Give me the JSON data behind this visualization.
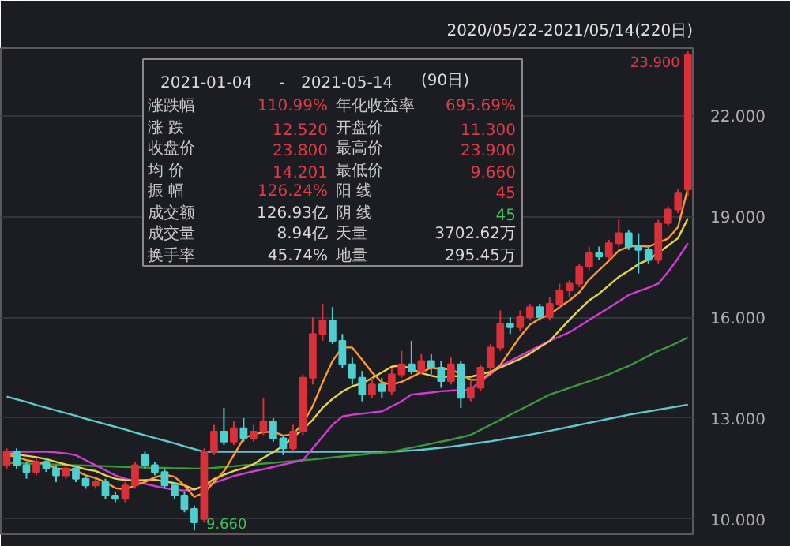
{
  "chart_data": {
    "type": "candlestick",
    "categories": [
      null,
      null,
      null,
      null,
      null,
      null,
      null,
      null,
      null,
      null,
      null,
      null,
      null,
      null,
      null,
      null,
      null,
      null,
      null,
      null,
      null,
      null,
      null,
      null,
      null,
      null,
      null,
      null,
      null,
      null,
      null,
      null,
      null,
      null,
      null,
      null,
      null,
      null,
      null,
      null,
      null,
      null,
      null,
      null,
      null,
      null,
      null,
      null,
      null,
      null,
      null,
      null,
      null,
      null,
      null,
      null,
      null,
      null,
      null,
      null,
      null,
      null,
      null,
      null,
      null,
      null,
      null,
      null,
      null,
      null
    ],
    "ohlc": [
      [
        11.6,
        12.1,
        11.5,
        12.0
      ],
      [
        12.0,
        12.1,
        11.5,
        11.6
      ],
      [
        11.6,
        11.7,
        11.2,
        11.4
      ],
      [
        11.4,
        11.8,
        11.3,
        11.7
      ],
      [
        11.7,
        11.8,
        11.4,
        11.5
      ],
      [
        11.5,
        11.6,
        11.1,
        11.3
      ],
      [
        11.3,
        11.6,
        11.2,
        11.5
      ],
      [
        11.5,
        11.6,
        11.1,
        11.2
      ],
      [
        11.2,
        11.3,
        10.9,
        11.0
      ],
      [
        11.0,
        11.2,
        10.9,
        11.1
      ],
      [
        11.1,
        11.2,
        10.6,
        10.7
      ],
      [
        10.7,
        10.8,
        10.5,
        10.6
      ],
      [
        10.6,
        11.1,
        10.5,
        11.0
      ],
      [
        11.0,
        11.7,
        10.9,
        11.6
      ],
      [
        11.9,
        12.0,
        11.5,
        11.6
      ],
      [
        11.6,
        11.7,
        11.3,
        11.4
      ],
      [
        11.4,
        11.5,
        10.9,
        11.0
      ],
      [
        11.0,
        11.1,
        10.6,
        10.7
      ],
      [
        10.7,
        10.8,
        10.2,
        10.3
      ],
      [
        10.3,
        10.4,
        9.66,
        9.9
      ],
      [
        10.0,
        12.1,
        9.9,
        12.0
      ],
      [
        12.0,
        12.8,
        11.9,
        12.6
      ],
      [
        12.6,
        13.3,
        12.2,
        12.3
      ],
      [
        12.3,
        12.9,
        12.2,
        12.7
      ],
      [
        12.7,
        13.0,
        12.3,
        12.4
      ],
      [
        12.4,
        12.8,
        12.3,
        12.6
      ],
      [
        12.6,
        13.6,
        12.5,
        12.9
      ],
      [
        12.9,
        13.0,
        12.3,
        12.4
      ],
      [
        12.4,
        12.5,
        11.9,
        12.1
      ],
      [
        12.1,
        12.8,
        12.0,
        12.6
      ],
      [
        12.6,
        14.3,
        12.5,
        14.2
      ],
      [
        14.2,
        16.0,
        14.0,
        15.5
      ],
      [
        15.5,
        16.4,
        15.3,
        15.9
      ],
      [
        15.9,
        16.3,
        15.2,
        15.3
      ],
      [
        15.3,
        15.5,
        14.5,
        14.6
      ],
      [
        14.6,
        14.8,
        14.0,
        14.2
      ],
      [
        14.2,
        14.4,
        13.5,
        13.7
      ],
      [
        13.7,
        14.2,
        13.6,
        14.0
      ],
      [
        14.0,
        14.2,
        13.6,
        13.8
      ],
      [
        13.8,
        14.5,
        13.7,
        14.3
      ],
      [
        14.3,
        15.0,
        14.2,
        14.6
      ],
      [
        14.6,
        15.3,
        14.3,
        14.4
      ],
      [
        14.4,
        14.9,
        14.3,
        14.7
      ],
      [
        14.7,
        14.9,
        14.3,
        14.5
      ],
      [
        14.5,
        14.7,
        13.9,
        14.1
      ],
      [
        14.1,
        14.8,
        14.0,
        14.6
      ],
      [
        14.6,
        14.7,
        13.3,
        13.6
      ],
      [
        13.6,
        14.1,
        13.5,
        13.9
      ],
      [
        13.9,
        14.6,
        13.8,
        14.5
      ],
      [
        14.5,
        15.2,
        14.4,
        15.1
      ],
      [
        15.1,
        16.2,
        15.0,
        15.8
      ],
      [
        15.8,
        16.0,
        15.5,
        15.7
      ],
      [
        15.7,
        16.2,
        15.6,
        16.0
      ],
      [
        16.0,
        16.4,
        15.9,
        16.3
      ],
      [
        16.3,
        16.4,
        15.9,
        16.0
      ],
      [
        16.0,
        16.6,
        15.9,
        16.4
      ],
      [
        16.4,
        17.0,
        16.3,
        16.8
      ],
      [
        16.8,
        17.1,
        16.6,
        17.0
      ],
      [
        17.0,
        17.6,
        16.9,
        17.5
      ],
      [
        17.5,
        18.1,
        17.4,
        17.9
      ],
      [
        17.9,
        18.1,
        17.7,
        17.8
      ],
      [
        17.8,
        18.3,
        17.7,
        18.2
      ],
      [
        18.2,
        18.9,
        18.1,
        18.5
      ],
      [
        18.5,
        18.6,
        18.0,
        18.1
      ],
      [
        18.1,
        18.5,
        17.3,
        18.0
      ],
      [
        18.0,
        18.1,
        17.6,
        17.7
      ],
      [
        17.7,
        18.9,
        17.6,
        18.8
      ],
      [
        18.8,
        19.3,
        18.7,
        19.2
      ],
      [
        19.2,
        19.8,
        19.1,
        19.7
      ],
      [
        19.8,
        23.9,
        19.6,
        23.8
      ]
    ],
    "colors": [
      "#d9303a",
      "#4ecfd0",
      "#4ecfd0",
      "#d9303a",
      "#4ecfd0",
      "#4ecfd0",
      "#d9303a",
      "#4ecfd0",
      "#4ecfd0",
      "#d9303a",
      "#4ecfd0",
      "#4ecfd0",
      "#d9303a",
      "#d9303a",
      "#4ecfd0",
      "#4ecfd0",
      "#4ecfd0",
      "#4ecfd0",
      "#4ecfd0",
      "#4ecfd0",
      "#d9303a",
      "#d9303a",
      "#4ecfd0",
      "#d9303a",
      "#4ecfd0",
      "#d9303a",
      "#d9303a",
      "#4ecfd0",
      "#4ecfd0",
      "#d9303a",
      "#d9303a",
      "#d9303a",
      "#d9303a",
      "#4ecfd0",
      "#4ecfd0",
      "#4ecfd0",
      "#4ecfd0",
      "#d9303a",
      "#4ecfd0",
      "#d9303a",
      "#d9303a",
      "#4ecfd0",
      "#d9303a",
      "#4ecfd0",
      "#4ecfd0",
      "#d9303a",
      "#4ecfd0",
      "#d9303a",
      "#d9303a",
      "#d9303a",
      "#d9303a",
      "#4ecfd0",
      "#d9303a",
      "#d9303a",
      "#4ecfd0",
      "#d9303a",
      "#d9303a",
      "#d9303a",
      "#d9303a",
      "#d9303a",
      "#4ecfd0",
      "#d9303a",
      "#d9303a",
      "#4ecfd0",
      "#4ecfd0",
      "#4ecfd0",
      "#d9303a",
      "#d9303a",
      "#d9303a",
      "#d9303a"
    ],
    "series": [
      {
        "type": "line",
        "color": "#5fc8d0",
        "values": [
          13.64,
          13.56,
          13.48,
          13.39,
          13.31,
          13.23,
          13.15,
          13.07,
          12.98,
          12.9,
          12.82,
          12.74,
          12.66,
          12.57,
          12.49,
          12.41,
          12.33,
          12.25,
          12.16,
          12.08,
          12.0,
          12.0,
          12.0,
          12.0,
          12.0,
          12.0,
          12.0,
          12.0,
          12.0,
          12.0,
          12.0,
          12.0,
          12.0,
          12.0,
          12.0,
          12.0,
          12.0,
          12.0,
          12.0,
          12.0,
          12.02,
          12.04,
          12.06,
          12.09,
          12.12,
          12.15,
          12.19,
          12.23,
          12.27,
          12.31,
          12.36,
          12.41,
          12.46,
          12.51,
          12.56,
          12.62,
          12.68,
          12.74,
          12.8,
          12.86,
          12.92,
          12.98,
          13.04,
          13.1,
          13.15,
          13.2,
          13.25,
          13.3,
          13.35,
          13.4
        ]
      },
      {
        "type": "line",
        "color": "#3a9a3a",
        "values": [
          11.67,
          11.66,
          11.65,
          11.64,
          11.63,
          11.62,
          11.61,
          11.6,
          11.59,
          11.58,
          11.57,
          11.56,
          11.55,
          11.54,
          11.53,
          11.52,
          11.52,
          11.51,
          11.51,
          11.5,
          11.5,
          11.52,
          11.55,
          11.57,
          11.6,
          11.62,
          11.65,
          11.67,
          11.7,
          11.72,
          11.75,
          11.77,
          11.8,
          11.83,
          11.86,
          11.89,
          11.92,
          11.95,
          11.97,
          12.0,
          12.06,
          12.12,
          12.18,
          12.24,
          12.3,
          12.36,
          12.43,
          12.5,
          12.65,
          12.8,
          12.95,
          13.1,
          13.25,
          13.4,
          13.55,
          13.7,
          13.8,
          13.9,
          14.0,
          14.1,
          14.2,
          14.3,
          14.43,
          14.55,
          14.7,
          14.85,
          15.0,
          15.12,
          15.25,
          15.4
        ]
      },
      {
        "type": "line",
        "color": "#d23cd2",
        "values": [
          12.0,
          12.0,
          12.0,
          12.0,
          12.0,
          11.98,
          11.95,
          11.9,
          11.75,
          11.6,
          11.45,
          11.3,
          11.2,
          11.12,
          11.05,
          10.98,
          10.92,
          10.87,
          10.85,
          10.88,
          10.98,
          11.08,
          11.18,
          11.28,
          11.35,
          11.42,
          11.48,
          11.55,
          11.62,
          11.68,
          11.75,
          12.1,
          12.45,
          12.8,
          13.05,
          13.1,
          13.13,
          13.17,
          13.2,
          13.35,
          13.5,
          13.7,
          13.73,
          13.76,
          13.8,
          13.82,
          13.83,
          13.85,
          14.1,
          14.3,
          14.55,
          14.7,
          14.85,
          15.0,
          15.15,
          15.3,
          15.42,
          15.55,
          15.73,
          15.92,
          16.1,
          16.28,
          16.47,
          16.66,
          16.77,
          16.88,
          17.0,
          17.35,
          17.75,
          18.2
        ]
      },
      {
        "type": "line",
        "color": "#e8d44a",
        "values": [
          11.95,
          11.92,
          11.88,
          11.84,
          11.78,
          11.7,
          11.62,
          11.56,
          11.48,
          11.43,
          11.3,
          11.2,
          11.16,
          11.15,
          11.16,
          11.17,
          11.12,
          11.07,
          11.0,
          10.88,
          10.99,
          11.19,
          11.32,
          11.43,
          11.51,
          11.63,
          11.82,
          11.99,
          12.17,
          12.44,
          12.66,
          12.95,
          13.31,
          13.57,
          13.79,
          13.95,
          14.03,
          14.19,
          14.36,
          14.53,
          14.57,
          14.46,
          14.34,
          14.26,
          14.21,
          14.25,
          14.24,
          14.23,
          14.3,
          14.38,
          14.5,
          14.63,
          14.76,
          14.92,
          15.11,
          15.29,
          15.61,
          15.92,
          16.22,
          16.5,
          16.7,
          16.95,
          17.2,
          17.38,
          17.58,
          17.71,
          17.91,
          18.13,
          18.35,
          18.94
        ]
      },
      {
        "type": "line",
        "color": "#ff9a2e",
        "values": [
          11.9,
          11.85,
          11.75,
          11.7,
          11.64,
          11.5,
          11.48,
          11.44,
          11.3,
          11.22,
          11.1,
          10.92,
          10.88,
          11.0,
          11.1,
          11.24,
          11.32,
          11.26,
          11.0,
          10.66,
          10.78,
          11.1,
          11.42,
          11.9,
          12.4,
          12.52,
          12.58,
          12.6,
          12.48,
          12.52,
          12.84,
          13.36,
          14.06,
          14.7,
          15.1,
          15.1,
          14.74,
          14.36,
          14.06,
          14.0,
          14.08,
          14.22,
          14.36,
          14.5,
          14.46,
          14.46,
          14.3,
          14.14,
          14.14,
          14.34,
          14.58,
          15.0,
          15.42,
          15.78,
          15.96,
          16.08,
          16.3,
          16.5,
          16.74,
          17.12,
          17.4,
          17.68,
          17.98,
          18.1,
          18.12,
          18.1,
          18.22,
          18.34,
          18.68,
          19.84
        ]
      }
    ],
    "ylim": [
      9.55,
      24.0
    ],
    "yticks": [
      {
        "value": 10,
        "label": "10.000"
      },
      {
        "value": 13,
        "label": "13.000"
      },
      {
        "value": 16,
        "label": "16.000"
      },
      {
        "value": 19,
        "label": "19.000"
      },
      {
        "value": 22,
        "label": "22.000"
      }
    ],
    "grid": "y",
    "tick_labels": "y",
    "annotations": [
      "2020/05/22-2021/05/14(220日)",
      "2021-01-04",
      "-",
      "2021-05-14",
      "(90日)",
      "涨跌幅",
      "110.99%",
      "年化收益率",
      "695.69%",
      "涨 跌",
      "12.520",
      "开盘价",
      "11.300",
      "收盘价",
      "23.800",
      "最高价",
      "23.900",
      "均 价",
      "14.201",
      "最低价",
      "9.660",
      "振 幅",
      "126.24%",
      "阳 线",
      "45",
      "成交额",
      "126.93亿",
      "阴 线",
      "45",
      "成交量",
      "8.94亿",
      "天量",
      "3702.62万",
      "换手率",
      "45.74%",
      "地量",
      "295.45万",
      "23.900",
      "9.660"
    ]
  }
}
